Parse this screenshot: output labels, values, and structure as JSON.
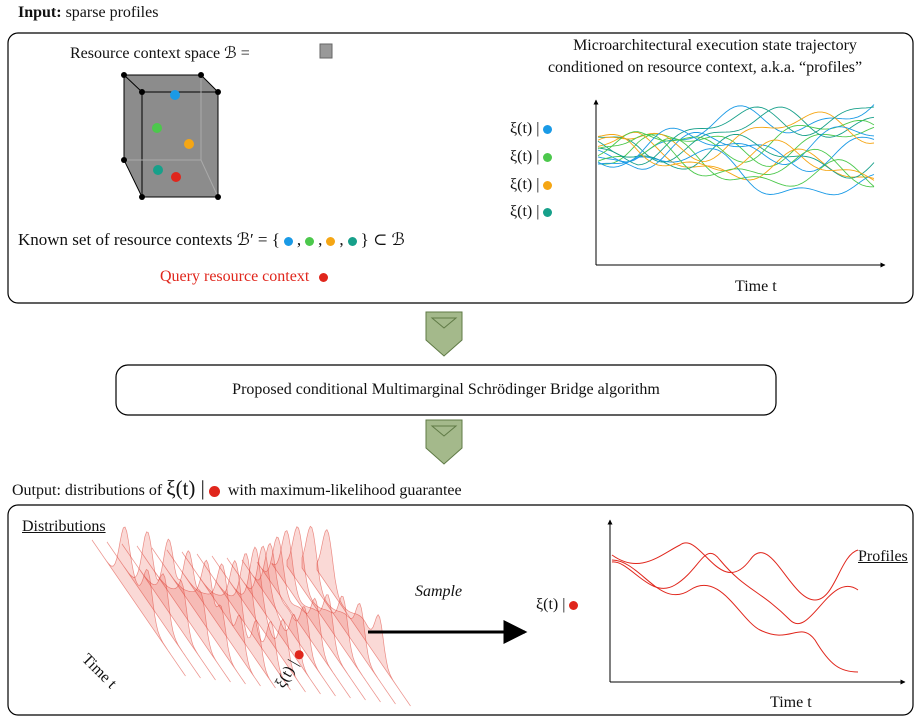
{
  "input": {
    "label": "Input:",
    "text": "sparse profiles",
    "resource_space_label": "Resource context space ℬ =",
    "trajectory_title": [
      "Microarchitectural execution state trajectory",
      "conditioned on resource context, a.k.a. “profiles”"
    ],
    "conditional_labels": [
      "ξ(t) |",
      "ξ(t) |",
      "ξ(t) |",
      "ξ(t) |"
    ],
    "known_set_label": "Known set of resource contexts ℬ′ = {",
    "separator": ",",
    "known_set_end": "} ⊂ ℬ",
    "query_label": "Query resource context",
    "time_axis_label": "Time t"
  },
  "algorithm": {
    "label": "Proposed conditional Multimarginal Schrödinger Bridge algorithm"
  },
  "output": {
    "prefix": "Output: distributions of",
    "xi": "ξ(t) |",
    "suffix": "with maximum-likelihood guarantee",
    "distributions_label": "Distributions",
    "sample_label": "Sample",
    "profiles_label": "Profiles",
    "xi_label": "ξ(t) |",
    "time_axis_label": "Time t",
    "dist_time_label": "Time t",
    "dist_xi_label": "ξ(t) |"
  }
}
